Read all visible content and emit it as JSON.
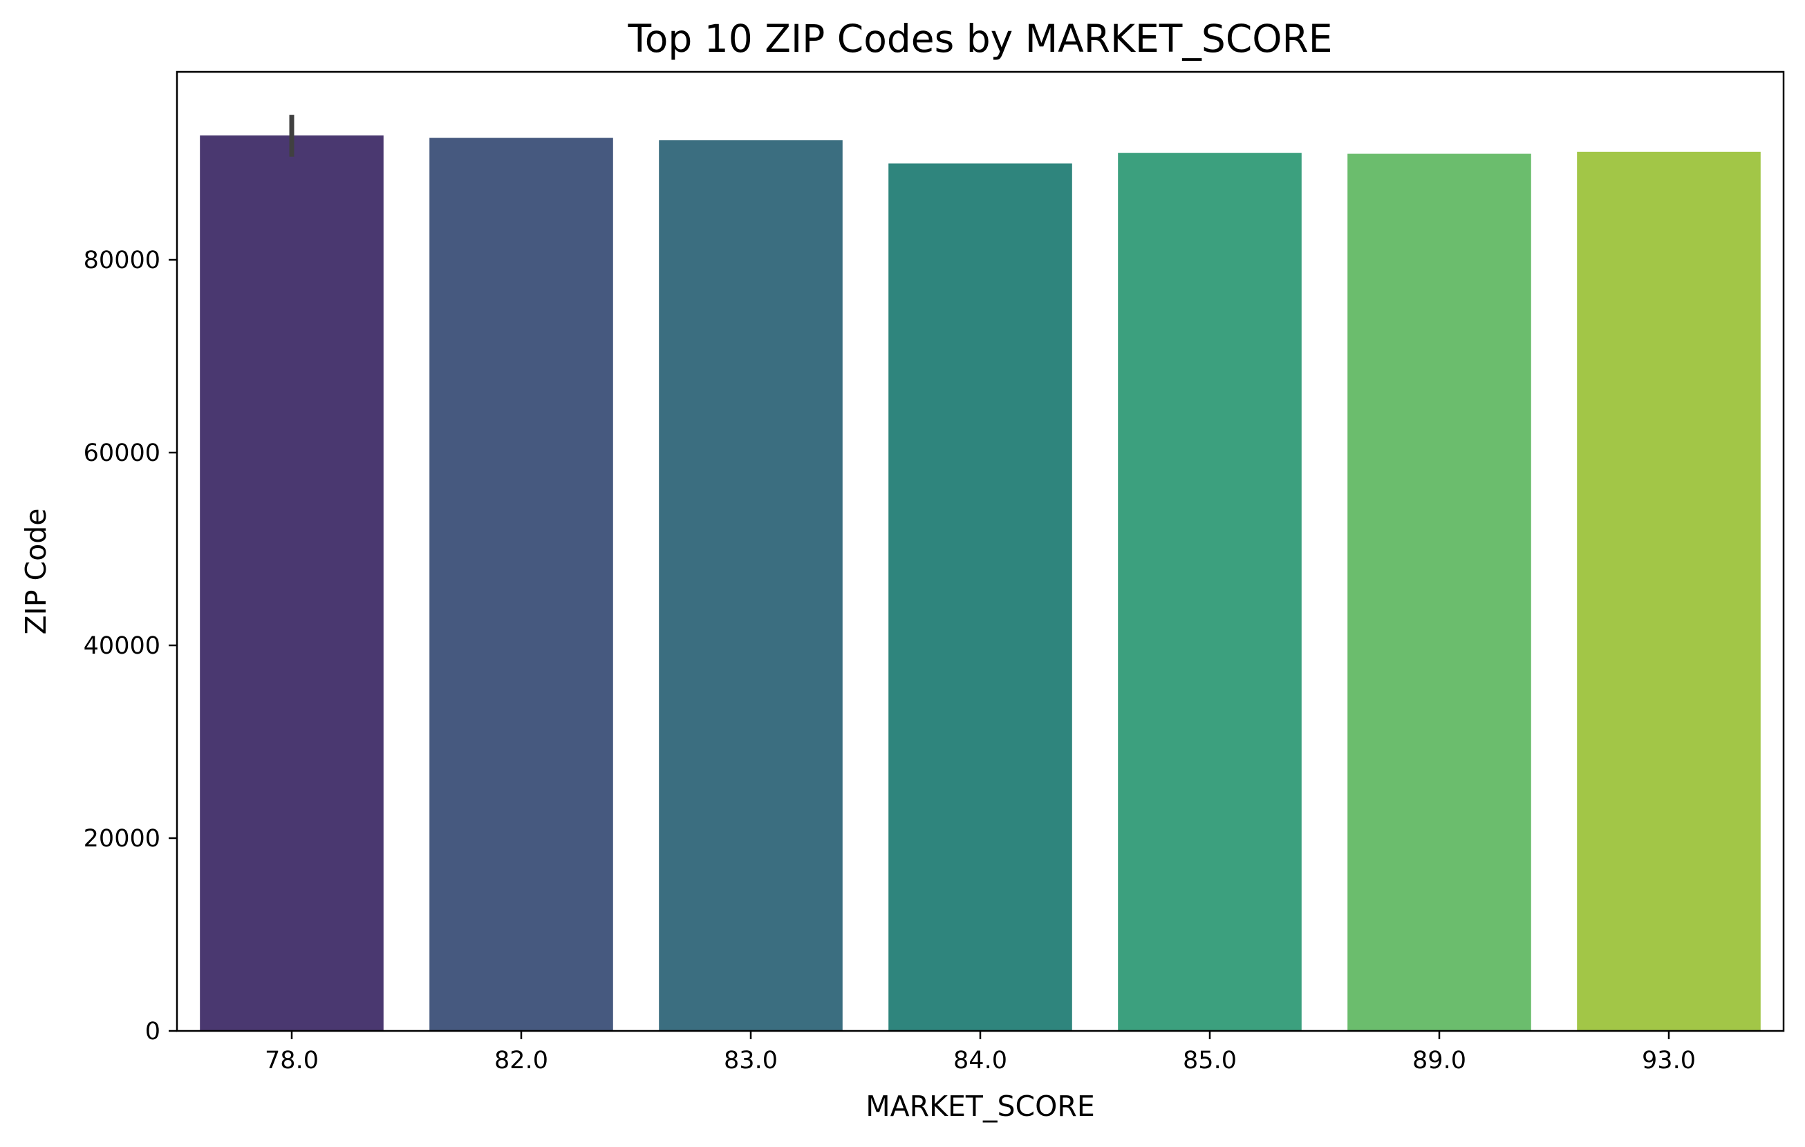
{
  "chart_data": {
    "type": "bar",
    "title": "Top 10 ZIP Codes by MARKET_SCORE",
    "xlabel": "MARKET_SCORE",
    "ylabel": "ZIP Code",
    "categories": [
      "78.0",
      "82.0",
      "83.0",
      "84.0",
      "85.0",
      "89.0",
      "93.0"
    ],
    "values": [
      92900,
      92650,
      92400,
      90000,
      91100,
      91000,
      91200
    ],
    "error_bars": [
      {
        "category": "78.0",
        "low": 90700,
        "high": 95050
      }
    ],
    "ylim": [
      0,
      99500
    ],
    "yticks": [
      0,
      20000,
      40000,
      60000,
      80000
    ],
    "ytick_labels": [
      "0",
      "20000",
      "40000",
      "60000",
      "80000"
    ],
    "grid": false,
    "legend": "none",
    "colors": [
      "#4a3870",
      "#46597f",
      "#3b6e80",
      "#2f857d",
      "#3ca07e",
      "#6bbd6d",
      "#a2c647"
    ],
    "error_bar_color": "#404040"
  }
}
